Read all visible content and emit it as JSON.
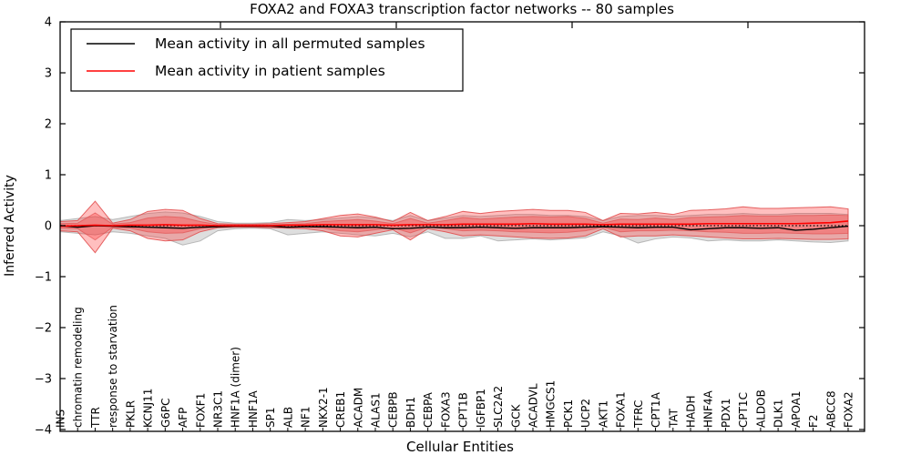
{
  "chart_data": {
    "type": "line",
    "title": "FOXA2 and FOXA3 transcription factor networks -- 80 samples",
    "xlabel": "Cellular Entities",
    "ylabel": "Inferred Activity",
    "ylim": [
      -4,
      4
    ],
    "yticks": [
      -4,
      -3,
      -2,
      -1,
      0,
      1,
      2,
      3,
      4
    ],
    "grid": false,
    "legend_position": "upper left",
    "reference_line_y": 0,
    "categories": [
      "INS",
      "chromatin remodeling",
      "TTR",
      "response to starvation",
      "PKLR",
      "KCNJ11",
      "G6PC",
      "AFP",
      "FOXF1",
      "NR3C1",
      "HNF1A (dimer)",
      "HNF1A",
      "SP1",
      "ALB",
      "NF1",
      "NKX2-1",
      "CREB1",
      "ACADM",
      "ALAS1",
      "CEBPB",
      "BDH1",
      "CEBPA",
      "FOXA3",
      "CPT1B",
      "IGFBP1",
      "SLC2A2",
      "GCK",
      "ACADVL",
      "HMGCS1",
      "PCK1",
      "UCP2",
      "AKT1",
      "FOXA1",
      "TFRC",
      "CPT1A",
      "TAT",
      "HADH",
      "HNF4A",
      "PDX1",
      "CPT1C",
      "ALDOB",
      "DLK1",
      "APOA1",
      "F2",
      "ABCC8",
      "FOXA2"
    ],
    "series": [
      {
        "name": "Mean activity in all permuted samples",
        "color": "#000000",
        "values": [
          0,
          -0.03,
          0,
          -0.01,
          -0.02,
          -0.03,
          -0.04,
          -0.05,
          -0.03,
          -0.02,
          -0.01,
          -0.01,
          -0.01,
          -0.03,
          -0.02,
          -0.02,
          -0.03,
          -0.04,
          -0.03,
          -0.06,
          -0.05,
          -0.03,
          -0.04,
          -0.04,
          -0.03,
          -0.04,
          -0.05,
          -0.04,
          -0.04,
          -0.04,
          -0.03,
          -0.02,
          -0.03,
          -0.04,
          -0.03,
          -0.03,
          -0.08,
          -0.06,
          -0.04,
          -0.04,
          -0.05,
          -0.04,
          -0.09,
          -0.07,
          -0.04,
          -0.01
        ]
      },
      {
        "name": "Mean activity in patient samples",
        "color": "#ff0000",
        "values": [
          -0.01,
          0,
          0.01,
          0,
          0.01,
          0.01,
          0.02,
          0.01,
          0.01,
          0,
          0,
          0,
          0,
          0.01,
          0.01,
          0.02,
          0.02,
          0.02,
          0.02,
          0.01,
          0.02,
          0.02,
          0.02,
          0.03,
          0.03,
          0.03,
          0.03,
          0.04,
          0.03,
          0.03,
          0.03,
          0.02,
          0.03,
          0.03,
          0.03,
          0.03,
          0.03,
          0.04,
          0.04,
          0.04,
          0.04,
          0.04,
          0.04,
          0.05,
          0.06,
          0.09
        ]
      }
    ],
    "bands": [
      {
        "name": "permuted-sample-range",
        "fill": "#999999",
        "fill_opacity": 0.32,
        "edge": "#8a8a8a",
        "edge_opacity": 0.55,
        "upper": [
          0.1,
          0.14,
          0.18,
          0.12,
          0.18,
          0.24,
          0.27,
          0.25,
          0.18,
          0.08,
          0.05,
          0.05,
          0.06,
          0.12,
          0.1,
          0.12,
          0.15,
          0.18,
          0.15,
          0.1,
          0.2,
          0.1,
          0.15,
          0.2,
          0.18,
          0.2,
          0.22,
          0.22,
          0.2,
          0.2,
          0.18,
          0.1,
          0.18,
          0.2,
          0.2,
          0.18,
          0.2,
          0.22,
          0.22,
          0.24,
          0.22,
          0.22,
          0.24,
          0.24,
          0.24,
          0.22
        ],
        "lower": [
          -0.12,
          -0.15,
          -0.18,
          -0.12,
          -0.15,
          -0.2,
          -0.25,
          -0.38,
          -0.3,
          -0.1,
          -0.06,
          -0.05,
          -0.06,
          -0.18,
          -0.15,
          -0.12,
          -0.15,
          -0.18,
          -0.2,
          -0.15,
          -0.22,
          -0.12,
          -0.25,
          -0.25,
          -0.2,
          -0.3,
          -0.28,
          -0.26,
          -0.28,
          -0.26,
          -0.24,
          -0.12,
          -0.2,
          -0.34,
          -0.26,
          -0.22,
          -0.24,
          -0.3,
          -0.28,
          -0.3,
          -0.3,
          -0.28,
          -0.3,
          -0.32,
          -0.33,
          -0.3
        ]
      },
      {
        "name": "patient-sample-range-outer",
        "fill": "#ff2a2a",
        "fill_opacity": 0.3,
        "edge": "#e04a4a",
        "edge_opacity": 0.85,
        "upper": [
          0.08,
          0.1,
          0.48,
          0.05,
          0.12,
          0.28,
          0.32,
          0.3,
          0.14,
          0.04,
          0.03,
          0.03,
          0.04,
          0.06,
          0.08,
          0.14,
          0.2,
          0.23,
          0.17,
          0.08,
          0.26,
          0.1,
          0.18,
          0.28,
          0.24,
          0.28,
          0.3,
          0.32,
          0.3,
          0.3,
          0.26,
          0.1,
          0.24,
          0.23,
          0.26,
          0.22,
          0.3,
          0.31,
          0.33,
          0.37,
          0.34,
          0.34,
          0.35,
          0.36,
          0.37,
          0.33
        ],
        "lower": [
          -0.1,
          -0.12,
          -0.53,
          -0.05,
          -0.1,
          -0.25,
          -0.3,
          -0.28,
          -0.12,
          -0.04,
          -0.03,
          -0.03,
          -0.04,
          -0.05,
          -0.06,
          -0.1,
          -0.2,
          -0.22,
          -0.15,
          -0.08,
          -0.28,
          -0.06,
          -0.12,
          -0.2,
          -0.18,
          -0.2,
          -0.22,
          -0.24,
          -0.25,
          -0.24,
          -0.2,
          -0.06,
          -0.22,
          -0.2,
          -0.2,
          -0.18,
          -0.2,
          -0.22,
          -0.24,
          -0.26,
          -0.26,
          -0.25,
          -0.26,
          -0.27,
          -0.27,
          -0.26
        ]
      },
      {
        "name": "patient-sample-range-inner",
        "fill": "#ff2a2a",
        "fill_opacity": 0.3,
        "edge": "#e04a4a",
        "edge_opacity": 0.6,
        "upper": [
          0.04,
          0.05,
          0.25,
          0.03,
          0.06,
          0.15,
          0.18,
          0.16,
          0.08,
          0.02,
          0.02,
          0.02,
          0.02,
          0.03,
          0.04,
          0.08,
          0.1,
          0.12,
          0.09,
          0.04,
          0.14,
          0.05,
          0.1,
          0.16,
          0.13,
          0.15,
          0.17,
          0.18,
          0.17,
          0.18,
          0.14,
          0.05,
          0.13,
          0.12,
          0.15,
          0.12,
          0.16,
          0.17,
          0.18,
          0.2,
          0.19,
          0.19,
          0.2,
          0.2,
          0.21,
          0.2
        ],
        "lower": [
          -0.05,
          -0.06,
          -0.28,
          -0.03,
          -0.05,
          -0.12,
          -0.15,
          -0.14,
          -0.06,
          -0.02,
          -0.02,
          -0.02,
          -0.02,
          -0.03,
          -0.03,
          -0.05,
          -0.1,
          -0.12,
          -0.08,
          -0.04,
          -0.14,
          -0.03,
          -0.06,
          -0.1,
          -0.09,
          -0.1,
          -0.12,
          -0.13,
          -0.14,
          -0.13,
          -0.1,
          -0.03,
          -0.12,
          -0.1,
          -0.1,
          -0.09,
          -0.1,
          -0.12,
          -0.13,
          -0.15,
          -0.15,
          -0.14,
          -0.15,
          -0.16,
          -0.16,
          -0.15
        ]
      }
    ]
  }
}
